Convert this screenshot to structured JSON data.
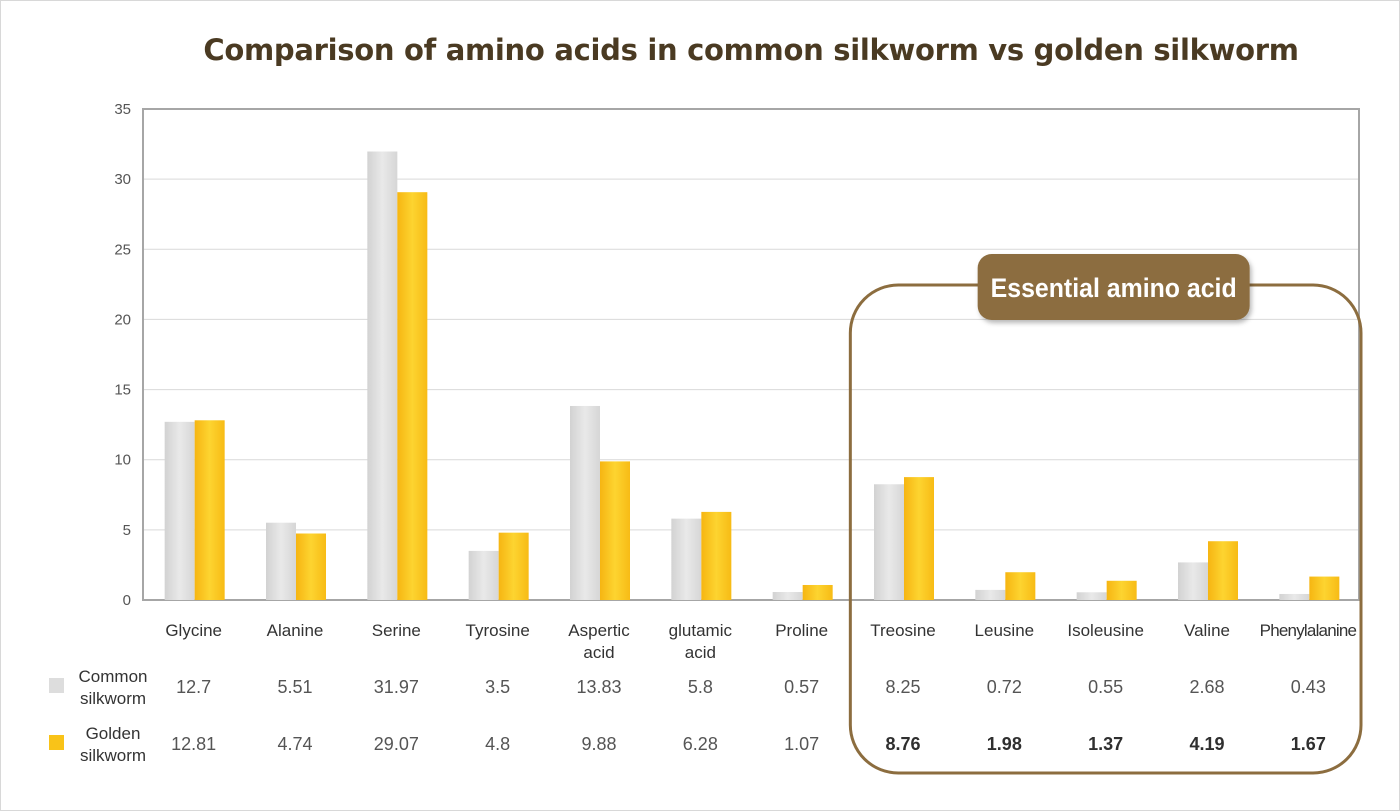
{
  "chart_data": {
    "type": "bar",
    "title": "Comparison of amino acids in common silkworm vs golden silkworm",
    "categories": [
      "Glycine",
      "Alanine",
      "Serine",
      "Tyrosine",
      "Aspertic acid",
      "glutamic acid",
      "Proline",
      "Treosine",
      "Leusine",
      "Isoleusine",
      "Valine",
      "Phenylalanine"
    ],
    "series": [
      {
        "name": "Common silkworm",
        "values": [
          12.7,
          5.51,
          31.97,
          3.5,
          13.83,
          5.8,
          0.57,
          8.25,
          0.72,
          0.55,
          2.68,
          0.43
        ],
        "labels": [
          "12.7",
          "5.51",
          "31.97",
          "3.5",
          "13.83",
          "5.8",
          "0.57",
          "8.25",
          "0.72",
          "0.55",
          "2.68",
          "0.43"
        ],
        "color": "#dddddd"
      },
      {
        "name": "Golden silkworm",
        "values": [
          12.81,
          4.74,
          29.07,
          4.8,
          9.88,
          6.28,
          1.07,
          8.76,
          1.98,
          1.37,
          4.19,
          1.67
        ],
        "labels": [
          "12.81",
          "4.74",
          "29.07",
          "4.8",
          "9.88",
          "6.28",
          "1.07",
          "8.76",
          "1.98",
          "1.37",
          "4.19",
          "1.67"
        ],
        "color": "#f9c318"
      }
    ],
    "ylim": [
      0,
      35
    ],
    "yticks": [
      0,
      5,
      10,
      15,
      20,
      25,
      30,
      35
    ],
    "grid": true,
    "data_table": true,
    "annotation": {
      "label": "Essential amino acid",
      "categories": [
        "Treosine",
        "Leusine",
        "Isoleusine",
        "Valine",
        "Phenylalanine"
      ],
      "color": "#8c6d3f"
    }
  }
}
